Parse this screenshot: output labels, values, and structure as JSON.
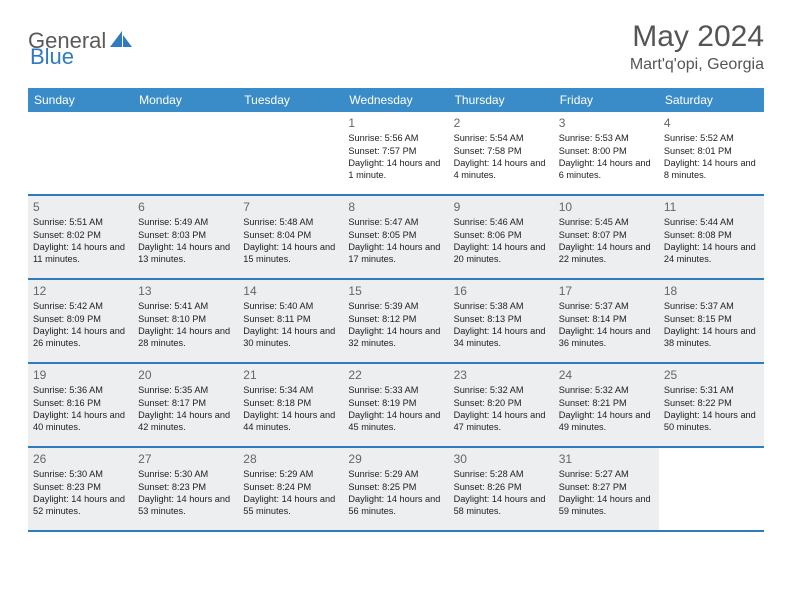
{
  "brand": {
    "name_part1": "General",
    "name_part2": "Blue"
  },
  "header": {
    "month_title": "May 2024",
    "location": "Mart'q'opi, Georgia"
  },
  "colors": {
    "header_bg": "#3a8cc9",
    "rule": "#2f7bbf",
    "shaded": "#eceeef",
    "text": "#333333"
  },
  "weekdays": [
    "Sunday",
    "Monday",
    "Tuesday",
    "Wednesday",
    "Thursday",
    "Friday",
    "Saturday"
  ],
  "weeks": [
    [
      {
        "n": "",
        "sr": "",
        "ss": "",
        "dl": "",
        "sh": false
      },
      {
        "n": "",
        "sr": "",
        "ss": "",
        "dl": "",
        "sh": false
      },
      {
        "n": "",
        "sr": "",
        "ss": "",
        "dl": "",
        "sh": false
      },
      {
        "n": "1",
        "sr": "5:56 AM",
        "ss": "7:57 PM",
        "dl": "14 hours and 1 minute.",
        "sh": false
      },
      {
        "n": "2",
        "sr": "5:54 AM",
        "ss": "7:58 PM",
        "dl": "14 hours and 4 minutes.",
        "sh": false
      },
      {
        "n": "3",
        "sr": "5:53 AM",
        "ss": "8:00 PM",
        "dl": "14 hours and 6 minutes.",
        "sh": false
      },
      {
        "n": "4",
        "sr": "5:52 AM",
        "ss": "8:01 PM",
        "dl": "14 hours and 8 minutes.",
        "sh": false
      }
    ],
    [
      {
        "n": "5",
        "sr": "5:51 AM",
        "ss": "8:02 PM",
        "dl": "14 hours and 11 minutes.",
        "sh": true
      },
      {
        "n": "6",
        "sr": "5:49 AM",
        "ss": "8:03 PM",
        "dl": "14 hours and 13 minutes.",
        "sh": true
      },
      {
        "n": "7",
        "sr": "5:48 AM",
        "ss": "8:04 PM",
        "dl": "14 hours and 15 minutes.",
        "sh": true
      },
      {
        "n": "8",
        "sr": "5:47 AM",
        "ss": "8:05 PM",
        "dl": "14 hours and 17 minutes.",
        "sh": true
      },
      {
        "n": "9",
        "sr": "5:46 AM",
        "ss": "8:06 PM",
        "dl": "14 hours and 20 minutes.",
        "sh": true
      },
      {
        "n": "10",
        "sr": "5:45 AM",
        "ss": "8:07 PM",
        "dl": "14 hours and 22 minutes.",
        "sh": true
      },
      {
        "n": "11",
        "sr": "5:44 AM",
        "ss": "8:08 PM",
        "dl": "14 hours and 24 minutes.",
        "sh": true
      }
    ],
    [
      {
        "n": "12",
        "sr": "5:42 AM",
        "ss": "8:09 PM",
        "dl": "14 hours and 26 minutes.",
        "sh": true
      },
      {
        "n": "13",
        "sr": "5:41 AM",
        "ss": "8:10 PM",
        "dl": "14 hours and 28 minutes.",
        "sh": true
      },
      {
        "n": "14",
        "sr": "5:40 AM",
        "ss": "8:11 PM",
        "dl": "14 hours and 30 minutes.",
        "sh": true
      },
      {
        "n": "15",
        "sr": "5:39 AM",
        "ss": "8:12 PM",
        "dl": "14 hours and 32 minutes.",
        "sh": true
      },
      {
        "n": "16",
        "sr": "5:38 AM",
        "ss": "8:13 PM",
        "dl": "14 hours and 34 minutes.",
        "sh": true
      },
      {
        "n": "17",
        "sr": "5:37 AM",
        "ss": "8:14 PM",
        "dl": "14 hours and 36 minutes.",
        "sh": true
      },
      {
        "n": "18",
        "sr": "5:37 AM",
        "ss": "8:15 PM",
        "dl": "14 hours and 38 minutes.",
        "sh": true
      }
    ],
    [
      {
        "n": "19",
        "sr": "5:36 AM",
        "ss": "8:16 PM",
        "dl": "14 hours and 40 minutes.",
        "sh": true
      },
      {
        "n": "20",
        "sr": "5:35 AM",
        "ss": "8:17 PM",
        "dl": "14 hours and 42 minutes.",
        "sh": true
      },
      {
        "n": "21",
        "sr": "5:34 AM",
        "ss": "8:18 PM",
        "dl": "14 hours and 44 minutes.",
        "sh": true
      },
      {
        "n": "22",
        "sr": "5:33 AM",
        "ss": "8:19 PM",
        "dl": "14 hours and 45 minutes.",
        "sh": true
      },
      {
        "n": "23",
        "sr": "5:32 AM",
        "ss": "8:20 PM",
        "dl": "14 hours and 47 minutes.",
        "sh": true
      },
      {
        "n": "24",
        "sr": "5:32 AM",
        "ss": "8:21 PM",
        "dl": "14 hours and 49 minutes.",
        "sh": true
      },
      {
        "n": "25",
        "sr": "5:31 AM",
        "ss": "8:22 PM",
        "dl": "14 hours and 50 minutes.",
        "sh": true
      }
    ],
    [
      {
        "n": "26",
        "sr": "5:30 AM",
        "ss": "8:23 PM",
        "dl": "14 hours and 52 minutes.",
        "sh": true
      },
      {
        "n": "27",
        "sr": "5:30 AM",
        "ss": "8:23 PM",
        "dl": "14 hours and 53 minutes.",
        "sh": true
      },
      {
        "n": "28",
        "sr": "5:29 AM",
        "ss": "8:24 PM",
        "dl": "14 hours and 55 minutes.",
        "sh": true
      },
      {
        "n": "29",
        "sr": "5:29 AM",
        "ss": "8:25 PM",
        "dl": "14 hours and 56 minutes.",
        "sh": true
      },
      {
        "n": "30",
        "sr": "5:28 AM",
        "ss": "8:26 PM",
        "dl": "14 hours and 58 minutes.",
        "sh": true
      },
      {
        "n": "31",
        "sr": "5:27 AM",
        "ss": "8:27 PM",
        "dl": "14 hours and 59 minutes.",
        "sh": true
      },
      {
        "n": "",
        "sr": "",
        "ss": "",
        "dl": "",
        "sh": false
      }
    ]
  ],
  "labels": {
    "sunrise": "Sunrise: ",
    "sunset": "Sunset: ",
    "daylight": "Daylight: "
  }
}
